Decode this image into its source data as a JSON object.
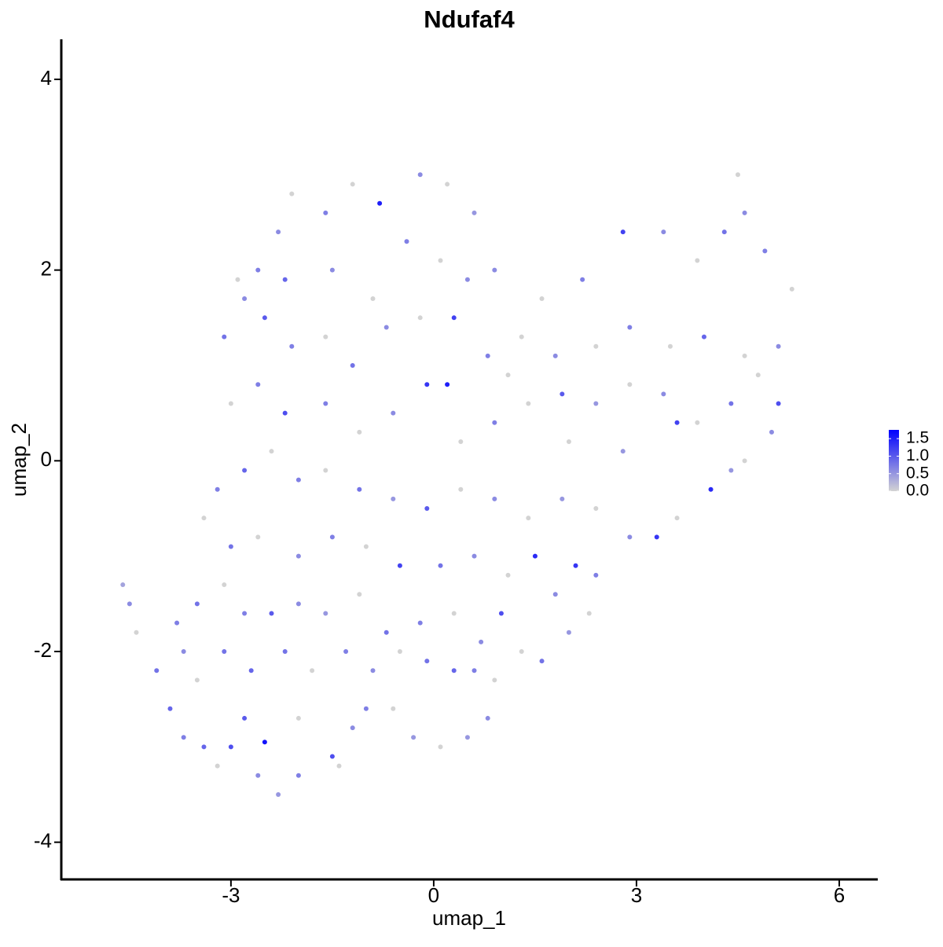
{
  "chart_data": {
    "type": "scatter",
    "title": "Ndufaf4",
    "xlabel": "umap_1",
    "ylabel": "umap_2",
    "xlim": [
      -5.51,
      6.57
    ],
    "ylim": [
      -4.39,
      4.42
    ],
    "xticks": [
      -3,
      0,
      3,
      6
    ],
    "yticks": [
      -4,
      -2,
      0,
      2,
      4
    ],
    "color_scale": {
      "low": "#d3d3d3",
      "high": "#0000ff",
      "limits": [
        0,
        1.75
      ],
      "ticks": [
        {
          "value": 0,
          "label": "0.0"
        },
        {
          "value": 0.5,
          "label": "0.5"
        },
        {
          "value": 1,
          "label": "1.0"
        },
        {
          "value": 1.5,
          "label": "1.5"
        }
      ]
    },
    "x": [
      -4.6,
      -4.5,
      -4.4,
      -4.1,
      -3.9,
      -3.7,
      -3.4,
      -3.2,
      -3.0,
      -2.8,
      -2.5,
      -2.6,
      -2.3,
      -2.0,
      -1.5,
      -1.4,
      -1.2,
      -0.6,
      -0.3,
      0.1,
      0.5,
      0.8,
      0.9,
      0.6,
      0.3,
      -0.1,
      -0.5,
      -0.9,
      -1.3,
      -1.8,
      -2.2,
      -2.7,
      -3.1,
      -3.5,
      -3.8,
      -3.5,
      -3.1,
      -2.8,
      -2.4,
      -2.0,
      -1.6,
      -1.1,
      -0.7,
      -0.2,
      0.3,
      0.7,
      1.0,
      1.3,
      1.6,
      2.0,
      2.3,
      2.4,
      2.1,
      1.5,
      1.1,
      0.6,
      0.1,
      -0.5,
      -1.0,
      -1.5,
      -2.0,
      -2.6,
      -3.0,
      -3.4,
      -3.2,
      -2.8,
      -2.4,
      -2.0,
      -1.6,
      -1.1,
      -0.6,
      -0.1,
      0.4,
      0.9,
      1.4,
      1.9,
      2.4,
      2.9,
      3.3,
      3.6,
      4.1,
      4.6,
      5.0,
      5.1,
      4.8,
      4.4,
      3.9,
      3.4,
      2.9,
      2.4,
      1.9,
      1.4,
      0.9,
      0.4,
      -0.1,
      -0.6,
      -1.1,
      -1.6,
      -2.2,
      -2.6,
      -3.0,
      -3.1,
      -2.8,
      -2.5,
      -2.1,
      -1.6,
      -1.2,
      -0.7,
      -0.2,
      0.3,
      0.8,
      1.3,
      1.8,
      2.4,
      2.9,
      3.5,
      4.0,
      4.6,
      5.1,
      5.3,
      4.9,
      4.6,
      4.5,
      4.3,
      3.9,
      3.4,
      2.8,
      2.2,
      1.6,
      0.9,
      0.6,
      0.2,
      -0.2,
      -0.8,
      -1.2,
      -1.6,
      -2.1,
      -2.3,
      -2.6,
      -2.9,
      -2.2,
      -1.5,
      -0.9,
      -0.4,
      0.1,
      0.5,
      1.1,
      2.0,
      2.8,
      3.6,
      4.4,
      -3.7,
      -2.0,
      -1.0,
      1.8,
      0.2
    ],
    "y": [
      -1.3,
      -1.5,
      -1.8,
      -2.2,
      -2.6,
      -2.9,
      -3.0,
      -3.2,
      -3.0,
      -2.7,
      -2.95,
      -3.3,
      -3.5,
      -3.3,
      -3.1,
      -3.2,
      -2.8,
      -2.6,
      -2.9,
      -3.0,
      -2.9,
      -2.7,
      -2.3,
      -2.2,
      -2.2,
      -2.1,
      -2.0,
      -2.2,
      -2.0,
      -2.2,
      -2.0,
      -2.2,
      -2.0,
      -2.3,
      -1.7,
      -1.5,
      -1.3,
      -1.6,
      -1.6,
      -1.5,
      -1.6,
      -1.4,
      -1.8,
      -1.7,
      -1.6,
      -1.9,
      -1.6,
      -2.0,
      -2.1,
      -1.8,
      -1.6,
      -1.2,
      -1.1,
      -1.0,
      -1.2,
      -1.0,
      -1.1,
      -1.1,
      -0.9,
      -0.8,
      -1.0,
      -0.8,
      -0.9,
      -0.6,
      -0.3,
      -0.1,
      0.1,
      -0.2,
      -0.1,
      -0.3,
      -0.4,
      -0.5,
      -0.3,
      -0.4,
      -0.6,
      -0.4,
      -0.5,
      -0.8,
      -0.8,
      -0.6,
      -0.3,
      0.0,
      0.3,
      0.6,
      0.9,
      0.6,
      0.4,
      0.7,
      0.8,
      0.6,
      0.7,
      0.6,
      0.4,
      0.2,
      0.8,
      0.5,
      0.3,
      0.6,
      0.5,
      0.8,
      0.6,
      1.3,
      1.7,
      1.5,
      1.2,
      1.3,
      1.0,
      1.4,
      1.5,
      1.5,
      1.1,
      1.3,
      1.1,
      1.2,
      1.4,
      1.2,
      1.3,
      1.1,
      1.2,
      1.8,
      2.2,
      2.6,
      3.0,
      2.4,
      2.1,
      2.4,
      2.4,
      1.9,
      1.7,
      2.0,
      2.6,
      2.9,
      3.0,
      2.7,
      2.9,
      2.6,
      2.8,
      2.4,
      2.0,
      1.9,
      1.9,
      2.0,
      1.7,
      2.3,
      2.1,
      1.9,
      0.9,
      0.2,
      0.1,
      0.4,
      -0.1,
      -2.0,
      -2.7,
      -2.6,
      -1.4,
      0.8
    ],
    "values": [
      0.4,
      0.6,
      0,
      0.8,
      0.9,
      0.7,
      0.9,
      0,
      1.1,
      1.0,
      1.6,
      0.6,
      0.5,
      0.7,
      1.1,
      0,
      0.6,
      0,
      0.5,
      0,
      0.5,
      0.6,
      0,
      0.7,
      0.9,
      0.8,
      0,
      0.6,
      0.7,
      0,
      0.8,
      0.9,
      0.8,
      0,
      0.7,
      0.8,
      0,
      0.7,
      1.0,
      0.6,
      0.5,
      0,
      0.8,
      0.7,
      0,
      0.6,
      1.1,
      0,
      0.8,
      0.5,
      0,
      0.7,
      1.3,
      1.4,
      0,
      0.6,
      0.8,
      1.2,
      0,
      0.7,
      0.6,
      0,
      0.8,
      0,
      0.7,
      0.9,
      0,
      0.7,
      0,
      0.8,
      0.5,
      1.0,
      0,
      0.6,
      0,
      0.5,
      0,
      0.6,
      1.3,
      0,
      1.4,
      0,
      0.6,
      1.1,
      0,
      0.8,
      0,
      0.6,
      0,
      0.5,
      1.0,
      0,
      0.7,
      0,
      1.3,
      0.6,
      0,
      0.7,
      1.1,
      0.7,
      0,
      0.8,
      0.6,
      1.0,
      0.7,
      0,
      0.8,
      0.6,
      0,
      1.2,
      0.7,
      0,
      0.6,
      0,
      0.7,
      0,
      0.9,
      0,
      0.6,
      0,
      0.7,
      0.6,
      0,
      0.8,
      0,
      0.6,
      1.2,
      0.7,
      0,
      0.6,
      0.5,
      0,
      0.6,
      1.5,
      0,
      0.7,
      0,
      0.6,
      0.7,
      0,
      0.9,
      0.6,
      0,
      0.7,
      0,
      0.6,
      0,
      0,
      0.5,
      1.2,
      0.5,
      0.6,
      0,
      0.7,
      0.6,
      1.5
    ]
  }
}
